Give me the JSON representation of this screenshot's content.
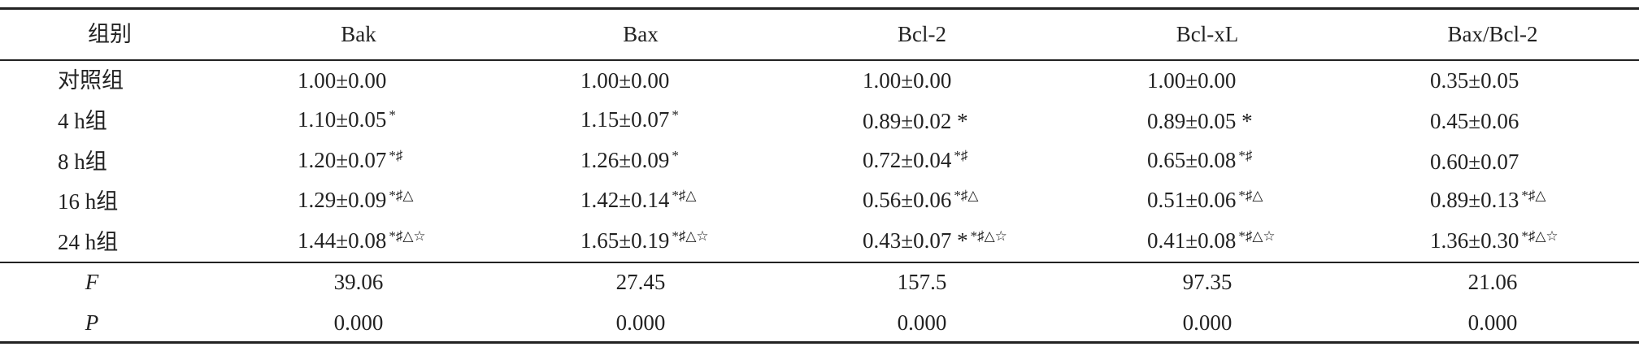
{
  "header": {
    "columns": [
      "组别",
      "Bak",
      "Bax",
      "Bcl-2",
      "Bcl-xL",
      "Bax/Bcl-2"
    ]
  },
  "rows": [
    {
      "label": "对照组",
      "cells": [
        {
          "text": "1.00±0.00"
        },
        {
          "text": "1.00±0.00"
        },
        {
          "text": "1.00±0.00"
        },
        {
          "text": "1.00±0.00"
        },
        {
          "text": "0.35±0.05"
        }
      ]
    },
    {
      "label": "4 h组",
      "cells": [
        {
          "text": "1.10±0.05",
          "sup": "*"
        },
        {
          "text": "1.15±0.07",
          "sup": "*"
        },
        {
          "text": "0.89±0.02 *"
        },
        {
          "text": "0.89±0.05 *"
        },
        {
          "text": "0.45±0.06"
        }
      ]
    },
    {
      "label": "8 h组",
      "cells": [
        {
          "text": "1.20±0.07",
          "sup": "*♯"
        },
        {
          "text": "1.26±0.09",
          "sup": "*"
        },
        {
          "text": "0.72±0.04",
          "sup": "*♯"
        },
        {
          "text": "0.65±0.08",
          "sup": "*♯"
        },
        {
          "text": "0.60±0.07"
        }
      ]
    },
    {
      "label": "16 h组",
      "cells": [
        {
          "text": "1.29±0.09",
          "sup": "*♯△"
        },
        {
          "text": "1.42±0.14",
          "sup": "*♯△"
        },
        {
          "text": "0.56±0.06",
          "sup": "*♯△"
        },
        {
          "text": "0.51±0.06",
          "sup": "*♯△"
        },
        {
          "text": "0.89±0.13",
          "sup": "*♯△"
        }
      ]
    },
    {
      "label": "24 h组",
      "cells": [
        {
          "text": "1.44±0.08",
          "sup": "*♯△☆"
        },
        {
          "text": "1.65±0.19",
          "sup": "*♯△☆"
        },
        {
          "text": "0.43±0.07 *",
          "sup": "*♯△☆"
        },
        {
          "text": "0.41±0.08",
          "sup": "*♯△☆"
        },
        {
          "text": "1.36±0.30",
          "sup": "*♯△☆"
        }
      ]
    }
  ],
  "stats": [
    {
      "label": "F",
      "values": [
        "39.06",
        "27.45",
        "157.5",
        "97.35",
        "21.06"
      ]
    },
    {
      "label": "P",
      "values": [
        "0.000",
        "0.000",
        "0.000",
        "0.000",
        "0.000"
      ]
    }
  ]
}
